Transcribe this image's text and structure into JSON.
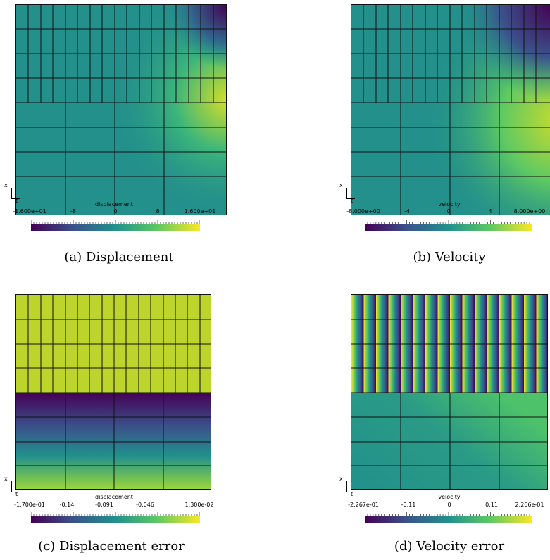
{
  "panels": [
    {
      "id": "a",
      "caption": "(a) Displacement",
      "colorbar": {
        "title": "displacement",
        "ticks": [
          "-1.600e+01",
          "-8",
          "0",
          "8",
          "1.600e+01"
        ]
      },
      "axes": {
        "x_label": "x",
        "t_label": "t"
      }
    },
    {
      "id": "b",
      "caption": "(b) Velocity",
      "colorbar": {
        "title": "velocity",
        "ticks": [
          "-8.000e+00",
          "-4",
          "0",
          "4",
          "8.000e+00"
        ]
      },
      "axes": {
        "x_label": "x",
        "t_label": "t"
      }
    },
    {
      "id": "c",
      "caption": "(c) Displacement error",
      "colorbar": {
        "title": "displacement",
        "ticks": [
          "-1.700e-01",
          "-0.14",
          "-0.091",
          "-0.046",
          "1.300e-02"
        ]
      },
      "axes": {
        "x_label": "x",
        "t_label": "t"
      }
    },
    {
      "id": "d",
      "caption": "(d) Velocity error",
      "colorbar": {
        "title": "velocity",
        "ticks": [
          "-2.267e-01",
          "-0.11",
          "0",
          "0.11",
          "2.266e-01"
        ]
      },
      "axes": {
        "x_label": "x",
        "t_label": "t"
      }
    }
  ],
  "colors": {
    "viridis_low": "#440154",
    "viridis_mid": "#21918c",
    "viridis_high": "#fde725"
  }
}
